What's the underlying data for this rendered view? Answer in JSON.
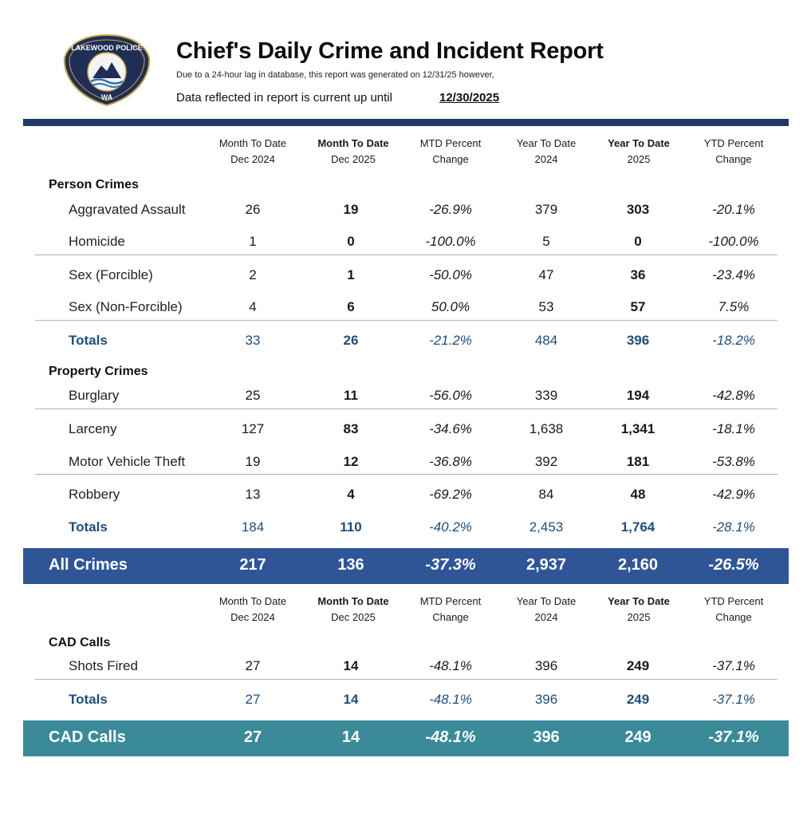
{
  "header": {
    "badge_text_top": "LAKEWOOD POLICE",
    "badge_text_bottom": "WA",
    "title": "Chief's Daily Crime and Incident Report",
    "note": "Due to a 24-hour lag in database, this report was generated on  12/31/25 however,",
    "reflect_label": "Data reflected in report is current up until",
    "reflect_date": "12/30/2025"
  },
  "colors": {
    "navy": "#1f3864",
    "blue_band": "#2f5597",
    "teal_band": "#3a8a9a",
    "total_text": "#1f4e79"
  },
  "columns": [
    {
      "line1": "Month To Date",
      "line2": "Dec 2024"
    },
    {
      "line1": "Month To Date",
      "line2": "Dec 2025"
    },
    {
      "line1": "MTD Percent",
      "line2": "Change"
    },
    {
      "line1": "Year To Date",
      "line2": "2024"
    },
    {
      "line1": "Year To Date",
      "line2": "2025"
    },
    {
      "line1": "YTD Percent",
      "line2": "Change"
    }
  ],
  "person": {
    "title": "Person Crimes",
    "rows": [
      {
        "label": "Aggravated Assault",
        "v": [
          "26",
          "19",
          "-26.9%",
          "379",
          "303",
          "-20.1%"
        ]
      },
      {
        "label": "Homicide",
        "v": [
          "1",
          "0",
          "-100.0%",
          "5",
          "0",
          "-100.0%"
        ]
      },
      {
        "label": "Sex (Forcible)",
        "v": [
          "2",
          "1",
          "-50.0%",
          "47",
          "36",
          "-23.4%"
        ]
      },
      {
        "label": "Sex (Non-Forcible)",
        "v": [
          "4",
          "6",
          "50.0%",
          "53",
          "57",
          "7.5%"
        ]
      }
    ],
    "totals": {
      "label": "Totals",
      "v": [
        "33",
        "26",
        "-21.2%",
        "484",
        "396",
        "-18.2%"
      ]
    }
  },
  "property": {
    "title": "Property Crimes",
    "rows": [
      {
        "label": "Burglary",
        "v": [
          "25",
          "11",
          "-56.0%",
          "339",
          "194",
          "-42.8%"
        ]
      },
      {
        "label": "Larceny",
        "v": [
          "127",
          "83",
          "-34.6%",
          "1,638",
          "1,341",
          "-18.1%"
        ]
      },
      {
        "label": "Motor Vehicle Theft",
        "v": [
          "19",
          "12",
          "-36.8%",
          "392",
          "181",
          "-53.8%"
        ]
      },
      {
        "label": "Robbery",
        "v": [
          "13",
          "4",
          "-69.2%",
          "84",
          "48",
          "-42.9%"
        ]
      }
    ],
    "totals": {
      "label": "Totals",
      "v": [
        "184",
        "110",
        "-40.2%",
        "2,453",
        "1,764",
        "-28.1%"
      ]
    }
  },
  "all_crimes": {
    "label": "All Crimes",
    "v": [
      "217",
      "136",
      "-37.3%",
      "2,937",
      "2,160",
      "-26.5%"
    ]
  },
  "cad": {
    "title": "CAD Calls",
    "rows": [
      {
        "label": "Shots Fired",
        "v": [
          "27",
          "14",
          "-48.1%",
          "396",
          "249",
          "-37.1%"
        ]
      }
    ],
    "totals": {
      "label": "Totals",
      "v": [
        "27",
        "14",
        "-48.1%",
        "396",
        "249",
        "-37.1%"
      ]
    }
  },
  "cad_band": {
    "label": "CAD Calls",
    "v": [
      "27",
      "14",
      "-48.1%",
      "396",
      "249",
      "-37.1%"
    ]
  }
}
